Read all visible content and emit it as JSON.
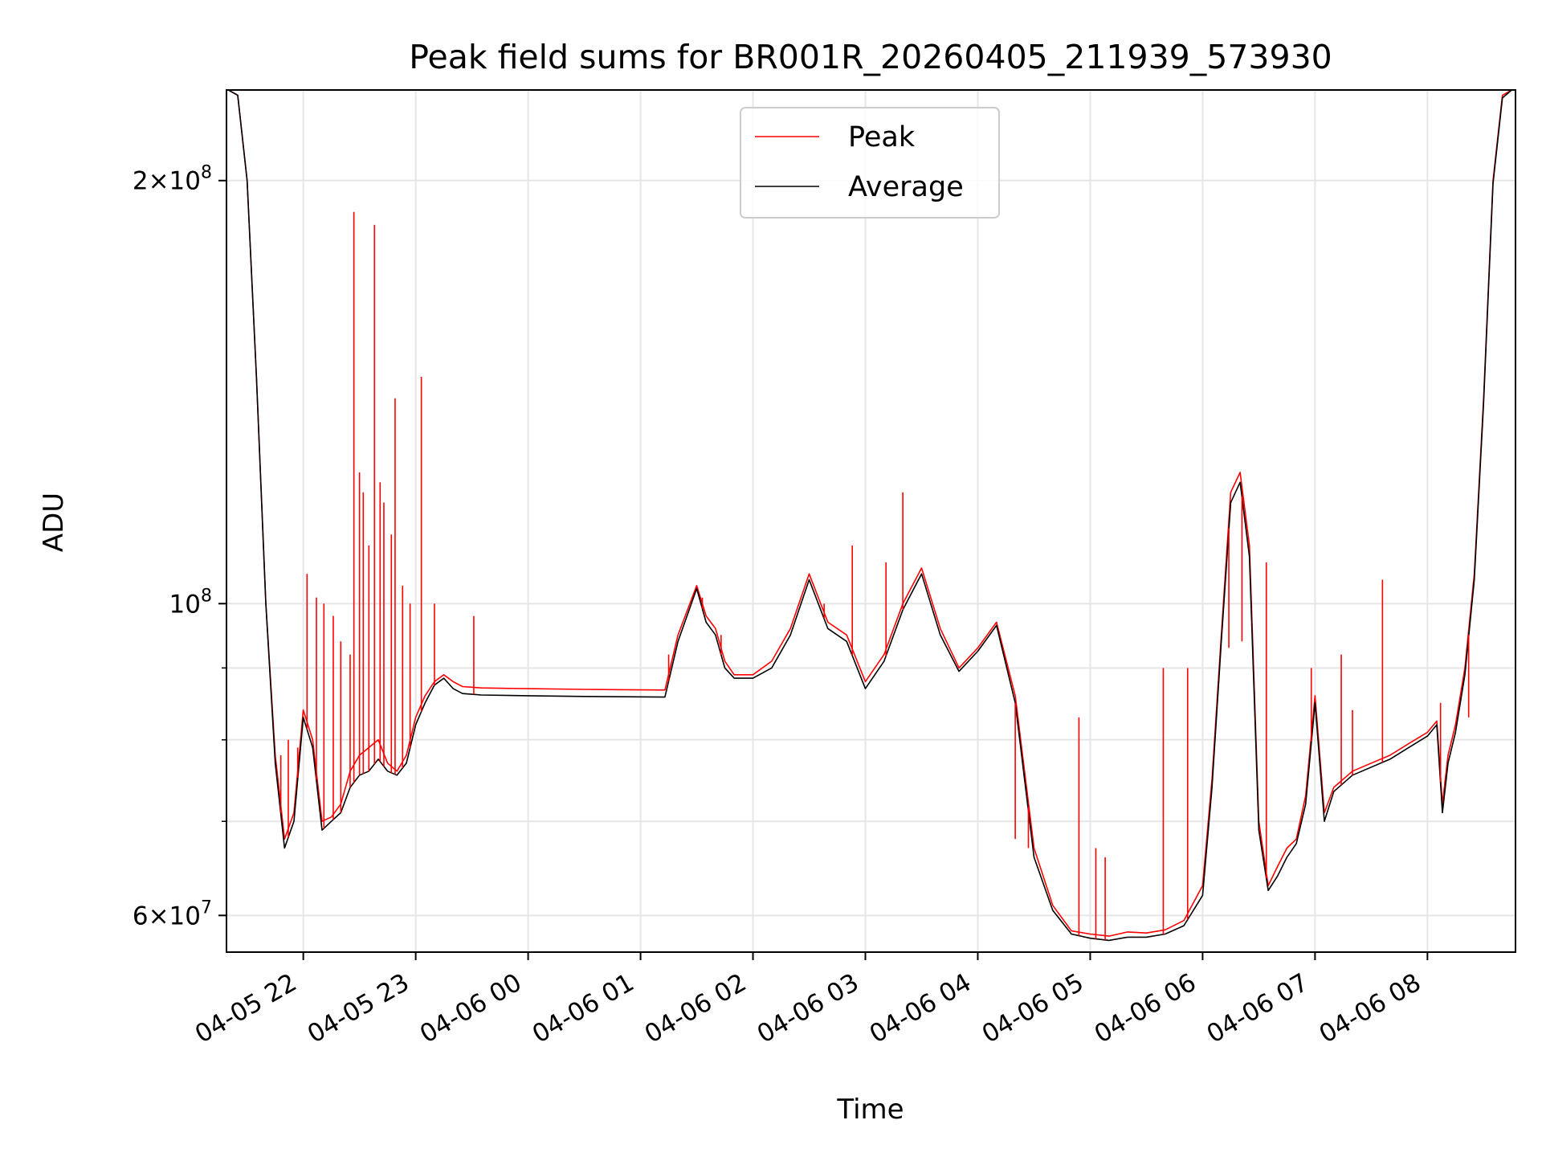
{
  "chart_data": {
    "type": "line",
    "title": "Peak field sums for BR001R_20260405_211939_573930",
    "xlabel": "Time",
    "ylabel": "ADU",
    "yscale": "log",
    "grid": true,
    "legend_position": "top-center",
    "xlim": [
      "2026-04-05T21:19",
      "2026-04-06T08:47"
    ],
    "ylim": [
      56500000,
      232000000
    ],
    "x_ticks": [
      "04-05 22",
      "04-05 23",
      "04-06 00",
      "04-06 01",
      "04-06 02",
      "04-06 03",
      "04-06 04",
      "04-06 05",
      "04-06 06",
      "04-06 07",
      "04-06 08"
    ],
    "y_ticks": [
      {
        "value": 200000000,
        "mantissa": "2",
        "exp": "8"
      },
      {
        "value": 100000000,
        "mantissa": "",
        "exp": "8"
      },
      {
        "value": 60000000,
        "mantissa": "6",
        "exp": "7"
      }
    ],
    "y_minor_ticks": [
      70000000,
      80000000,
      90000000
    ],
    "series": [
      {
        "name": "Peak",
        "color": "#ff0000",
        "x": [
          "2026-04-05T21:20",
          "2026-04-05T21:25",
          "2026-04-05T21:30",
          "2026-04-05T21:35",
          "2026-04-05T21:40",
          "2026-04-05T21:45",
          "2026-04-05T21:50",
          "2026-04-05T21:55",
          "2026-04-05T22:00",
          "2026-04-05T22:05",
          "2026-04-05T22:10",
          "2026-04-05T22:15",
          "2026-04-05T22:20",
          "2026-04-05T22:25",
          "2026-04-05T22:30",
          "2026-04-05T22:35",
          "2026-04-05T22:40",
          "2026-04-05T22:45",
          "2026-04-05T22:50",
          "2026-04-05T22:55",
          "2026-04-05T23:00",
          "2026-04-05T23:05",
          "2026-04-05T23:10",
          "2026-04-05T23:15",
          "2026-04-05T23:20",
          "2026-04-05T23:25",
          "2026-04-05T23:30",
          "2026-04-05T23:35",
          "2026-04-06T00:00",
          "2026-04-06T00:30",
          "2026-04-06T01:13",
          "2026-04-06T01:20",
          "2026-04-06T01:30",
          "2026-04-06T01:35",
          "2026-04-06T01:40",
          "2026-04-06T01:45",
          "2026-04-06T01:50",
          "2026-04-06T02:00",
          "2026-04-06T02:10",
          "2026-04-06T02:20",
          "2026-04-06T02:30",
          "2026-04-06T02:40",
          "2026-04-06T02:50",
          "2026-04-06T03:00",
          "2026-04-06T03:10",
          "2026-04-06T03:20",
          "2026-04-06T03:30",
          "2026-04-06T03:40",
          "2026-04-06T03:50",
          "2026-04-06T04:00",
          "2026-04-06T04:10",
          "2026-04-06T04:20",
          "2026-04-06T04:30",
          "2026-04-06T04:40",
          "2026-04-06T04:50",
          "2026-04-06T05:00",
          "2026-04-06T05:10",
          "2026-04-06T05:20",
          "2026-04-06T05:30",
          "2026-04-06T05:40",
          "2026-04-06T05:50",
          "2026-04-06T06:00",
          "2026-04-06T06:05",
          "2026-04-06T06:10",
          "2026-04-06T06:15",
          "2026-04-06T06:20",
          "2026-04-06T06:25",
          "2026-04-06T06:30",
          "2026-04-06T06:35",
          "2026-04-06T06:40",
          "2026-04-06T06:45",
          "2026-04-06T06:50",
          "2026-04-06T06:55",
          "2026-04-06T07:00",
          "2026-04-06T07:05",
          "2026-04-06T07:10",
          "2026-04-06T07:20",
          "2026-04-06T07:30",
          "2026-04-06T07:40",
          "2026-04-06T07:50",
          "2026-04-06T08:00",
          "2026-04-06T08:05",
          "2026-04-06T08:08",
          "2026-04-06T08:11",
          "2026-04-06T08:15",
          "2026-04-06T08:20",
          "2026-04-06T08:25",
          "2026-04-06T08:30",
          "2026-04-06T08:35",
          "2026-04-06T08:40",
          "2026-04-06T08:45"
        ],
        "y": [
          232000000,
          230000000,
          200000000,
          145000000,
          100000000,
          78000000,
          68000000,
          71000000,
          84000000,
          80000000,
          70000000,
          70500000,
          72000000,
          76000000,
          78000000,
          79000000,
          80000000,
          77000000,
          76000000,
          78000000,
          83000000,
          86000000,
          88000000,
          89000000,
          88000000,
          87300000,
          87200000,
          87100000,
          87000000,
          86900000,
          86800000,
          95000000,
          103000000,
          98000000,
          96000000,
          91000000,
          89000000,
          89000000,
          91000000,
          96000000,
          105000000,
          97000000,
          95000000,
          88000000,
          92000000,
          100000000,
          106000000,
          96000000,
          90000000,
          93000000,
          97000000,
          86000000,
          67000000,
          61000000,
          58500000,
          58200000,
          58000000,
          58400000,
          58300000,
          58600000,
          59500000,
          63000000,
          75000000,
          95000000,
          120000000,
          124000000,
          110000000,
          70000000,
          63000000,
          65000000,
          67000000,
          68000000,
          73000000,
          86000000,
          71000000,
          74000000,
          76000000,
          77000000,
          78000000,
          79500000,
          81000000,
          82500000,
          72000000,
          78000000,
          82000000,
          90000000,
          105000000,
          140000000,
          200000000,
          230000000,
          232000000
        ]
      },
      {
        "name": "Average",
        "color": "#000000",
        "x": [
          "2026-04-05T21:20",
          "2026-04-05T21:25",
          "2026-04-05T21:30",
          "2026-04-05T21:35",
          "2026-04-05T21:40",
          "2026-04-05T21:45",
          "2026-04-05T21:50",
          "2026-04-05T21:55",
          "2026-04-05T22:00",
          "2026-04-05T22:05",
          "2026-04-05T22:10",
          "2026-04-05T22:15",
          "2026-04-05T22:20",
          "2026-04-05T22:25",
          "2026-04-05T22:30",
          "2026-04-05T22:35",
          "2026-04-05T22:40",
          "2026-04-05T22:45",
          "2026-04-05T22:50",
          "2026-04-05T22:55",
          "2026-04-05T23:00",
          "2026-04-05T23:05",
          "2026-04-05T23:10",
          "2026-04-05T23:15",
          "2026-04-05T23:20",
          "2026-04-05T23:25",
          "2026-04-05T23:30",
          "2026-04-05T23:35",
          "2026-04-06T00:00",
          "2026-04-06T00:30",
          "2026-04-06T01:13",
          "2026-04-06T01:20",
          "2026-04-06T01:30",
          "2026-04-06T01:35",
          "2026-04-06T01:40",
          "2026-04-06T01:45",
          "2026-04-06T01:50",
          "2026-04-06T02:00",
          "2026-04-06T02:10",
          "2026-04-06T02:20",
          "2026-04-06T02:30",
          "2026-04-06T02:40",
          "2026-04-06T02:50",
          "2026-04-06T03:00",
          "2026-04-06T03:10",
          "2026-04-06T03:20",
          "2026-04-06T03:30",
          "2026-04-06T03:40",
          "2026-04-06T03:50",
          "2026-04-06T04:00",
          "2026-04-06T04:10",
          "2026-04-06T04:20",
          "2026-04-06T04:30",
          "2026-04-06T04:40",
          "2026-04-06T04:50",
          "2026-04-06T05:00",
          "2026-04-06T05:10",
          "2026-04-06T05:20",
          "2026-04-06T05:30",
          "2026-04-06T05:40",
          "2026-04-06T05:50",
          "2026-04-06T06:00",
          "2026-04-06T06:05",
          "2026-04-06T06:10",
          "2026-04-06T06:15",
          "2026-04-06T06:20",
          "2026-04-06T06:25",
          "2026-04-06T06:30",
          "2026-04-06T06:35",
          "2026-04-06T06:40",
          "2026-04-06T06:45",
          "2026-04-06T06:50",
          "2026-04-06T06:55",
          "2026-04-06T07:00",
          "2026-04-06T07:05",
          "2026-04-06T07:10",
          "2026-04-06T07:20",
          "2026-04-06T07:30",
          "2026-04-06T07:40",
          "2026-04-06T07:50",
          "2026-04-06T08:00",
          "2026-04-06T08:05",
          "2026-04-06T08:08",
          "2026-04-06T08:11",
          "2026-04-06T08:15",
          "2026-04-06T08:20",
          "2026-04-06T08:25",
          "2026-04-06T08:30",
          "2026-04-06T08:35",
          "2026-04-06T08:40",
          "2026-04-06T08:45"
        ],
        "y": [
          232000000,
          230000000,
          200000000,
          145000000,
          100000000,
          77000000,
          67000000,
          70000000,
          83000000,
          79000000,
          69000000,
          70000000,
          71000000,
          74000000,
          75500000,
          76000000,
          77500000,
          76000000,
          75500000,
          77000000,
          82000000,
          85000000,
          87500000,
          88500000,
          87000000,
          86300000,
          86200000,
          86100000,
          86000000,
          85900000,
          85800000,
          94000000,
          102500000,
          97000000,
          95000000,
          90000000,
          88500000,
          88500000,
          90000000,
          95000000,
          104000000,
          96000000,
          94000000,
          87000000,
          91000000,
          99000000,
          105000000,
          95000000,
          89500000,
          92500000,
          96500000,
          85000000,
          66000000,
          60500000,
          58200000,
          57800000,
          57600000,
          57900000,
          57900000,
          58200000,
          59000000,
          62000000,
          74000000,
          94000000,
          118000000,
          122000000,
          108000000,
          69000000,
          62500000,
          64000000,
          66000000,
          67500000,
          72000000,
          85000000,
          70000000,
          73500000,
          75500000,
          76500000,
          77500000,
          79000000,
          80500000,
          82000000,
          71000000,
          77000000,
          81000000,
          89000000,
          104000000,
          139000000,
          199000000,
          229000000,
          232000000
        ]
      }
    ],
    "spikes": {
      "x": [
        "2026-04-05T21:48",
        "2026-04-05T21:52",
        "2026-04-05T21:57",
        "2026-04-05T22:02",
        "2026-04-05T22:07",
        "2026-04-05T22:11",
        "2026-04-05T22:16",
        "2026-04-05T22:20",
        "2026-04-05T22:25",
        "2026-04-05T22:27",
        "2026-04-05T22:30",
        "2026-04-05T22:32",
        "2026-04-05T22:35",
        "2026-04-05T22:38",
        "2026-04-05T22:41",
        "2026-04-05T22:43",
        "2026-04-05T22:47",
        "2026-04-05T22:49",
        "2026-04-05T22:53",
        "2026-04-05T22:57",
        "2026-04-05T23:03",
        "2026-04-05T23:10",
        "2026-04-05T23:31",
        "2026-04-06T01:15",
        "2026-04-06T01:33",
        "2026-04-06T01:43",
        "2026-04-06T02:38",
        "2026-04-06T02:53",
        "2026-04-06T03:11",
        "2026-04-06T03:20",
        "2026-04-06T04:20",
        "2026-04-06T04:27",
        "2026-04-06T04:54",
        "2026-04-06T05:03",
        "2026-04-06T05:08",
        "2026-04-06T05:39",
        "2026-04-06T05:52",
        "2026-04-06T06:14",
        "2026-04-06T06:21",
        "2026-04-06T06:34",
        "2026-04-06T06:58",
        "2026-04-06T07:14",
        "2026-04-06T07:20",
        "2026-04-06T07:36",
        "2026-04-06T08:07",
        "2026-04-06T08:22"
      ],
      "y": [
        78000000,
        80000000,
        79000000,
        105000000,
        101000000,
        100000000,
        98000000,
        94000000,
        92000000,
        190000000,
        124000000,
        120000000,
        110000000,
        186000000,
        122000000,
        118000000,
        112000000,
        140000000,
        103000000,
        100000000,
        145000000,
        100000000,
        98000000,
        92000000,
        101000000,
        95000000,
        100000000,
        110000000,
        107000000,
        120000000,
        68000000,
        67000000,
        83000000,
        67000000,
        66000000,
        90000000,
        90000000,
        93000000,
        94000000,
        107000000,
        90000000,
        92000000,
        84000000,
        104000000,
        85000000,
        83000000
      ]
    }
  }
}
